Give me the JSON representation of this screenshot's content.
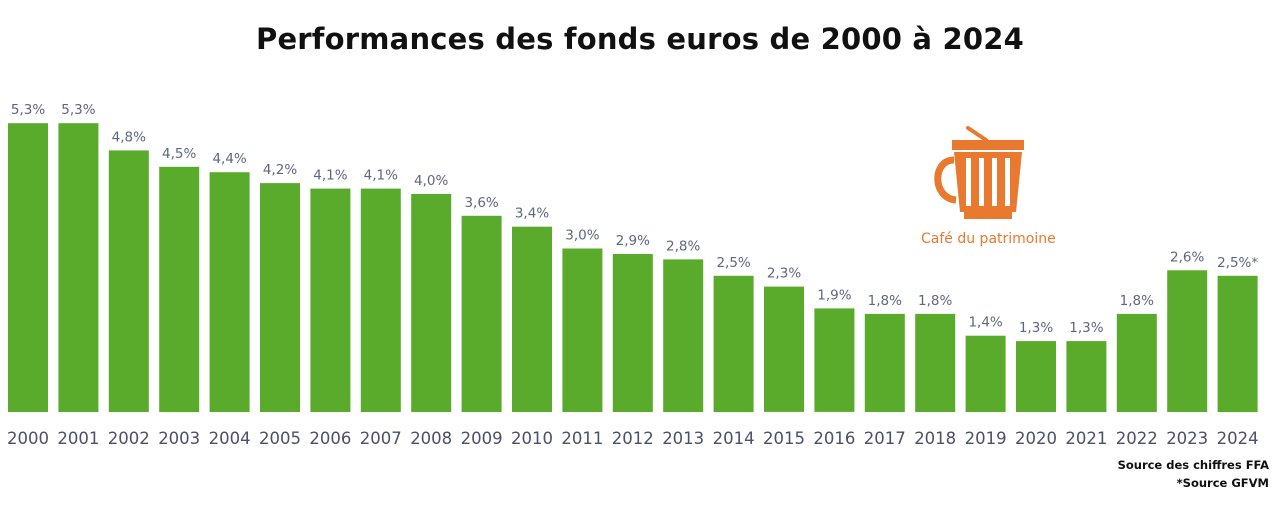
{
  "title": "Performances des fonds euros de 2000 à 2024",
  "logo": {
    "text": "Café du patrimoine",
    "icon": "cup-icon",
    "color": "#e8792e"
  },
  "sources": [
    "Source des chiffres FFA",
    "*Source GFVM"
  ],
  "colors": {
    "bar": "#5aab2c",
    "value_label": "#5f6680",
    "axis_label": "#4a5068"
  },
  "chart_data": {
    "type": "bar",
    "title": "Performances des fonds euros de 2000 à 2024",
    "categories": [
      "2000",
      "2001",
      "2002",
      "2003",
      "2004",
      "2005",
      "2006",
      "2007",
      "2008",
      "2009",
      "2010",
      "2011",
      "2012",
      "2013",
      "2014",
      "2015",
      "2016",
      "2017",
      "2018",
      "2019",
      "2020",
      "2021",
      "2022",
      "2023",
      "2024"
    ],
    "values": [
      5.3,
      5.3,
      4.8,
      4.5,
      4.4,
      4.2,
      4.1,
      4.1,
      4.0,
      3.6,
      3.4,
      3.0,
      2.9,
      2.8,
      2.5,
      2.3,
      1.9,
      1.8,
      1.8,
      1.4,
      1.3,
      1.3,
      1.8,
      2.6,
      2.5
    ],
    "labels": [
      "5,3%",
      "5,3%",
      "4,8%",
      "4,5%",
      "4,4%",
      "4,2%",
      "4,1%",
      "4,1%",
      "4,0%",
      "3,6%",
      "3,4%",
      "3,0%",
      "2,9%",
      "2,8%",
      "2,5%",
      "2,3%",
      "1,9%",
      "1,8%",
      "1,8%",
      "1,4%",
      "1,3%",
      "1,3%",
      "1,8%",
      "2,6%",
      "2,5%*"
    ],
    "xlabel": "",
    "ylabel": "",
    "grid": false,
    "legend": "none"
  }
}
